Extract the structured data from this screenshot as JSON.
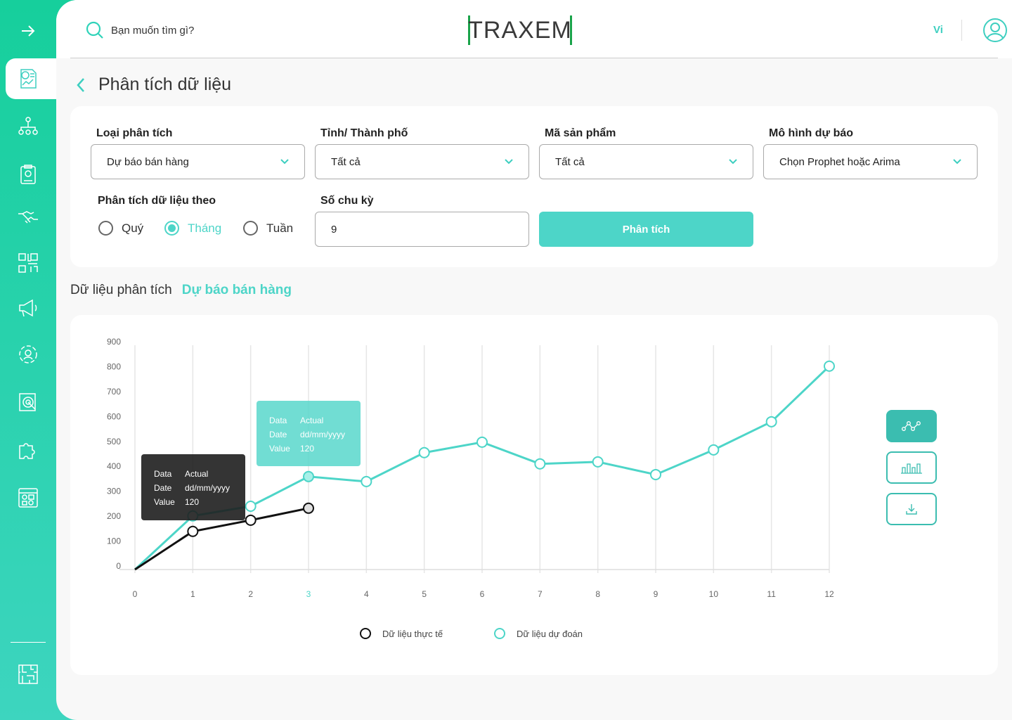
{
  "sidebar": {
    "items": [
      "expand",
      "data-analysis",
      "organization",
      "clipboard",
      "handshake",
      "qr-code",
      "megaphone",
      "settings-cycle",
      "target-report",
      "puzzle",
      "dashboard",
      "maze"
    ],
    "active": "data-analysis"
  },
  "header": {
    "search_placeholder": "Bạn muốn tìm gì?",
    "logo": "TRAXEM",
    "language": "Vi"
  },
  "page": {
    "title": "Phân tích dữ liệu"
  },
  "filters": {
    "analysis_type": {
      "label": "Loại phân tích",
      "value": "Dự báo bán hàng"
    },
    "city": {
      "label": "Tỉnh/ Thành phố",
      "value": "Tất cả"
    },
    "product_code": {
      "label": "Mã sản phẩm",
      "value": "Tất cả"
    },
    "model": {
      "label": "Mô hình dự báo",
      "value": "Chọn Prophet hoặc  Arima"
    },
    "period_by": {
      "label": "Phân tích dữ liệu theo",
      "options": [
        "Quý",
        "Tháng",
        "Tuần"
      ],
      "selected": "Tháng"
    },
    "periods": {
      "label": "Số chu kỳ",
      "value": "9"
    },
    "analyze_button": "Phân tích"
  },
  "section": {
    "title": "Dữ liệu phân tích",
    "subtitle": "Dự báo bán hàng"
  },
  "colors": {
    "accent": "#4dd5c8",
    "actual": "#111111",
    "forecast": "#4dd5c8"
  },
  "chart_data": {
    "type": "line",
    "x": [
      0,
      1,
      2,
      3,
      4,
      5,
      6,
      7,
      8,
      9,
      10,
      11,
      12
    ],
    "highlighted_x": 3,
    "ylim": [
      0,
      900
    ],
    "yticks": [
      0,
      100,
      200,
      300,
      400,
      500,
      600,
      700,
      800,
      900
    ],
    "grid": "vertical",
    "legend": "bottom",
    "series": [
      {
        "name": "Dữ liệu thực tế",
        "x": [
          0,
          1,
          2,
          3
        ],
        "values": [
          0,
          153,
          198,
          246
        ],
        "color": "#111111"
      },
      {
        "name": "Dữ liệu dự đoán",
        "x": [
          0,
          1,
          2,
          3,
          4,
          5,
          6,
          7,
          8,
          9,
          10,
          11,
          12
        ],
        "values": [
          0,
          215,
          254,
          373,
          353,
          469,
          511,
          424,
          432,
          381,
          480,
          593,
          816
        ],
        "color": "#4dd5c8"
      }
    ],
    "tooltips": [
      {
        "rows": [
          [
            "Data",
            "Actual"
          ],
          [
            "Date",
            "dd/mm/yyyy"
          ],
          [
            "Value",
            "120"
          ]
        ],
        "style": "dark"
      },
      {
        "rows": [
          [
            "Data",
            "Actual"
          ],
          [
            "Date",
            "dd/mm/yyyy"
          ],
          [
            "Value",
            "120"
          ]
        ],
        "style": "accent"
      }
    ]
  },
  "chart_tools": [
    "line-chart",
    "bar-chart",
    "download"
  ]
}
